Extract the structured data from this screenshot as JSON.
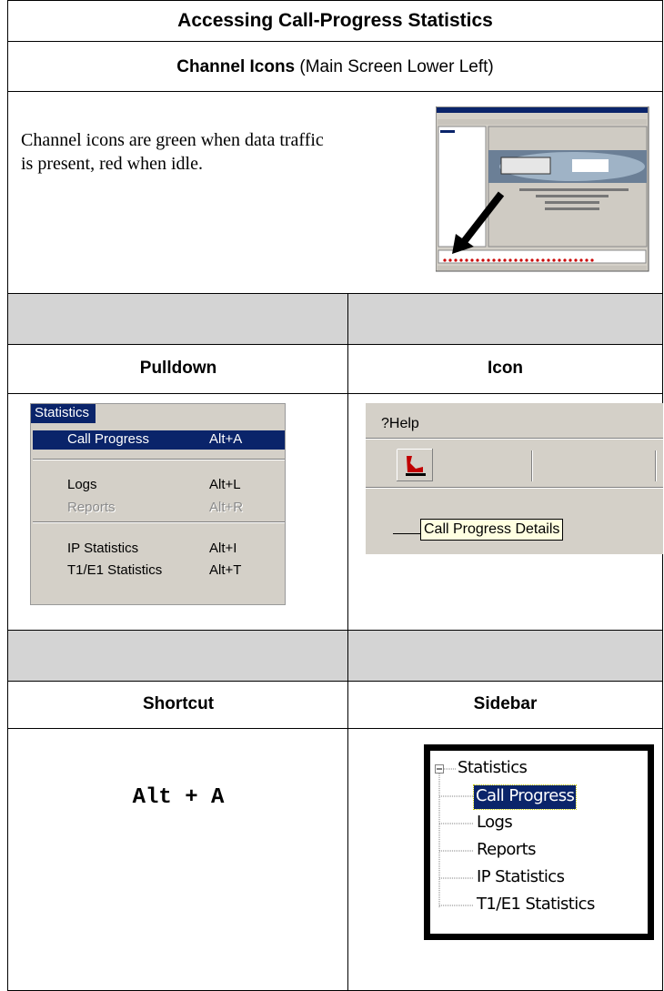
{
  "title": "Accessing Call-Progress Statistics",
  "section": {
    "heading_bold": "Channel Icons",
    "heading_rest": "(Main Screen Lower Left)",
    "text": "Channel icons are green when data traffic is present, red when idle."
  },
  "methods": [
    {
      "label": "Pulldown"
    },
    {
      "label": "Icon"
    },
    {
      "label": "Shortcut",
      "keys": "Alt + A"
    },
    {
      "label": "Sidebar"
    }
  ],
  "pulldown_menu": {
    "title": "Statistics",
    "items": [
      {
        "label": "Call Progress",
        "shortcut": "Alt+A"
      },
      {
        "label": "Logs",
        "shortcut": "Alt+L"
      },
      {
        "label": "Reports",
        "shortcut": "Alt+R"
      },
      {
        "label": "IP Statistics",
        "shortcut": "Alt+I"
      },
      {
        "label": "T1/E1 Statistics",
        "shortcut": "Alt+T"
      }
    ]
  },
  "icon_toolbar": {
    "menu": "?Help",
    "tooltip": "Call Progress Details"
  },
  "sidebar_tree": {
    "root": "Statistics",
    "children": [
      "Call Progress",
      "Logs",
      "Reports",
      "IP Statistics",
      "T1/E1 Statistics"
    ]
  }
}
